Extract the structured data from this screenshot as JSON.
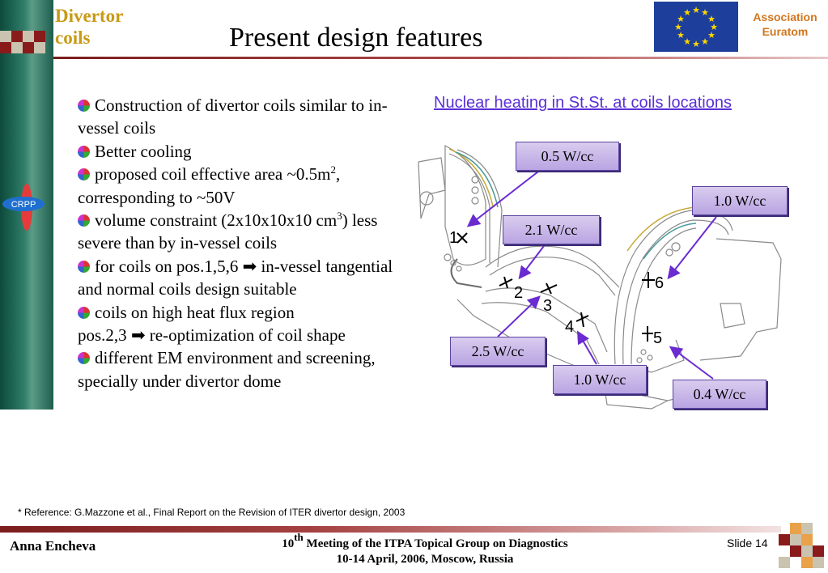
{
  "header": {
    "section_title_line1": "Divertor",
    "section_title_line2": "coils",
    "title": "Present design features",
    "association_line1": "Association",
    "association_line2": "Euratom",
    "logo_text": "CRPP"
  },
  "bullets": [
    {
      "text": "Construction of divertor coils similar to in-vessel coils"
    },
    {
      "text": "Better cooling"
    },
    {
      "pre": "proposed coil effective area ~0.5m",
      "sup": "2",
      "post": ", corresponding to ~50V"
    },
    {
      "pre": "volume constraint (2x10x10x10 cm",
      "sup": "3",
      "post": ") less severe than by in-vessel coils"
    },
    {
      "pre": "for coils on pos.1,5,6 ",
      "arrow": "➡",
      "post": " in-vessel tangential and normal coils design suitable"
    },
    {
      "text": "coils on high heat flux region"
    },
    {
      "pre": "pos.2,3 ",
      "arrow": "➡",
      "post": " re-optimization of coil shape"
    },
    {
      "text": "different EM environment and screening, specially under divertor dome"
    }
  ],
  "figure": {
    "title": "Nuclear heating in St.St. at coils locations",
    "position_labels": [
      "1",
      "2",
      "3",
      "4",
      "5",
      "6"
    ],
    "callouts": {
      "c1": "0.5 W/cc",
      "c6": "1.0 W/cc",
      "c2": "2.1 W/cc",
      "c3": "2.5 W/cc",
      "c4": "1.0 W/cc",
      "c5": "0.4 W/cc"
    },
    "accent_color": "#5a2fd6"
  },
  "footer": {
    "reference": "* Reference: G.Mazzone et al., Final Report on the Revision of ITER divertor design, 2003",
    "author": "Anna Encheva",
    "meeting_num": "10",
    "meeting_sup": "th",
    "meeting_rest": " Meeting of the ITPA Topical Group on Diagnostics",
    "meeting_line2": "10-14 April, 2006, Moscow, Russia",
    "slide_label": "Slide 14"
  }
}
